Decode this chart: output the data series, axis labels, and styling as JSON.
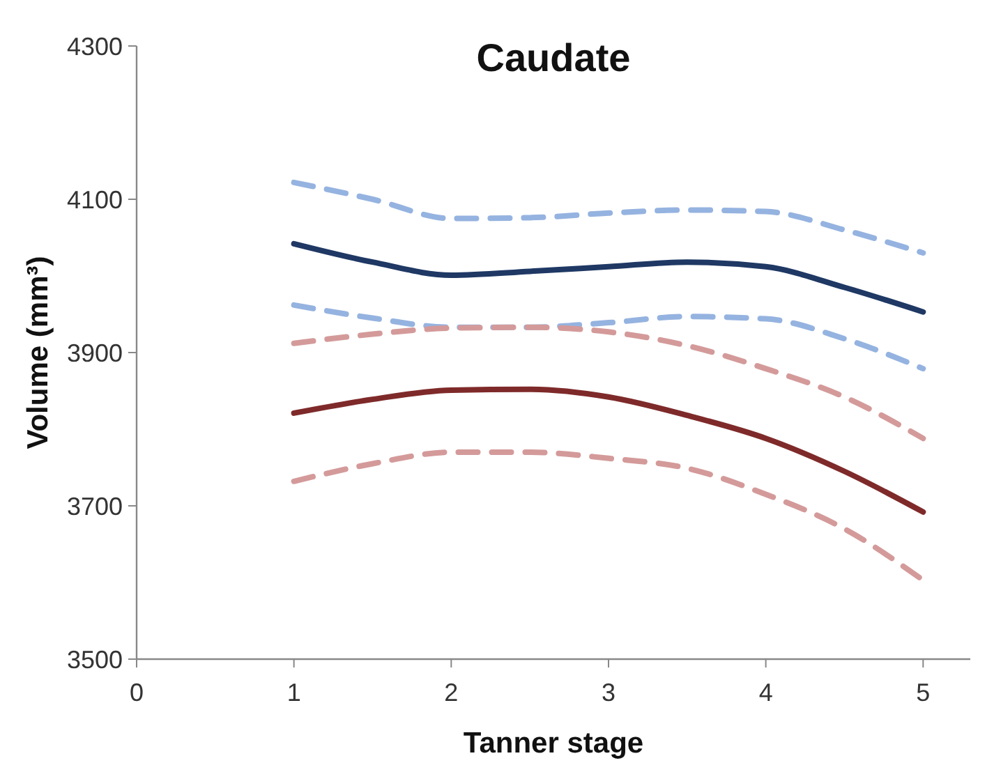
{
  "chart_data": {
    "type": "line",
    "title": "Caudate",
    "xlabel": "Tanner stage",
    "ylabel": "Volume (mm³)",
    "x": [
      1,
      1.5,
      2,
      2.5,
      3,
      3.5,
      4,
      4.5,
      5
    ],
    "xlim": [
      0,
      5.3
    ],
    "xticks": [
      0,
      1,
      2,
      3,
      4,
      5
    ],
    "ylim": [
      3500,
      4300
    ],
    "yticks": [
      3500,
      3700,
      3900,
      4100,
      4300
    ],
    "grid": false,
    "marker": "none",
    "series": [
      {
        "color": "#95b3e0",
        "line_style": "dashed",
        "values": [
          4122,
          4100,
          4075,
          4076,
          4082,
          4086,
          4084,
          4060,
          4030
        ]
      },
      {
        "color": "#1f3864",
        "line_style": "solid",
        "values": [
          4042,
          4018,
          4001,
          4006,
          4012,
          4018,
          4012,
          3985,
          3953
        ]
      },
      {
        "color": "#95b3e0",
        "line_style": "dashed",
        "values": [
          3962,
          3945,
          3933,
          3933,
          3939,
          3947,
          3944,
          3918,
          3879
        ]
      },
      {
        "color": "#d49a9a",
        "line_style": "dashed",
        "values": [
          3912,
          3924,
          3932,
          3933,
          3927,
          3909,
          3879,
          3842,
          3788
        ]
      },
      {
        "color": "#7f2a2a",
        "line_style": "solid",
        "values": [
          3821,
          3839,
          3851,
          3852,
          3842,
          3818,
          3788,
          3745,
          3692
        ]
      },
      {
        "color": "#d49a9a",
        "line_style": "dashed",
        "values": [
          3732,
          3755,
          3770,
          3770,
          3762,
          3749,
          3715,
          3670,
          3603
        ]
      }
    ]
  }
}
